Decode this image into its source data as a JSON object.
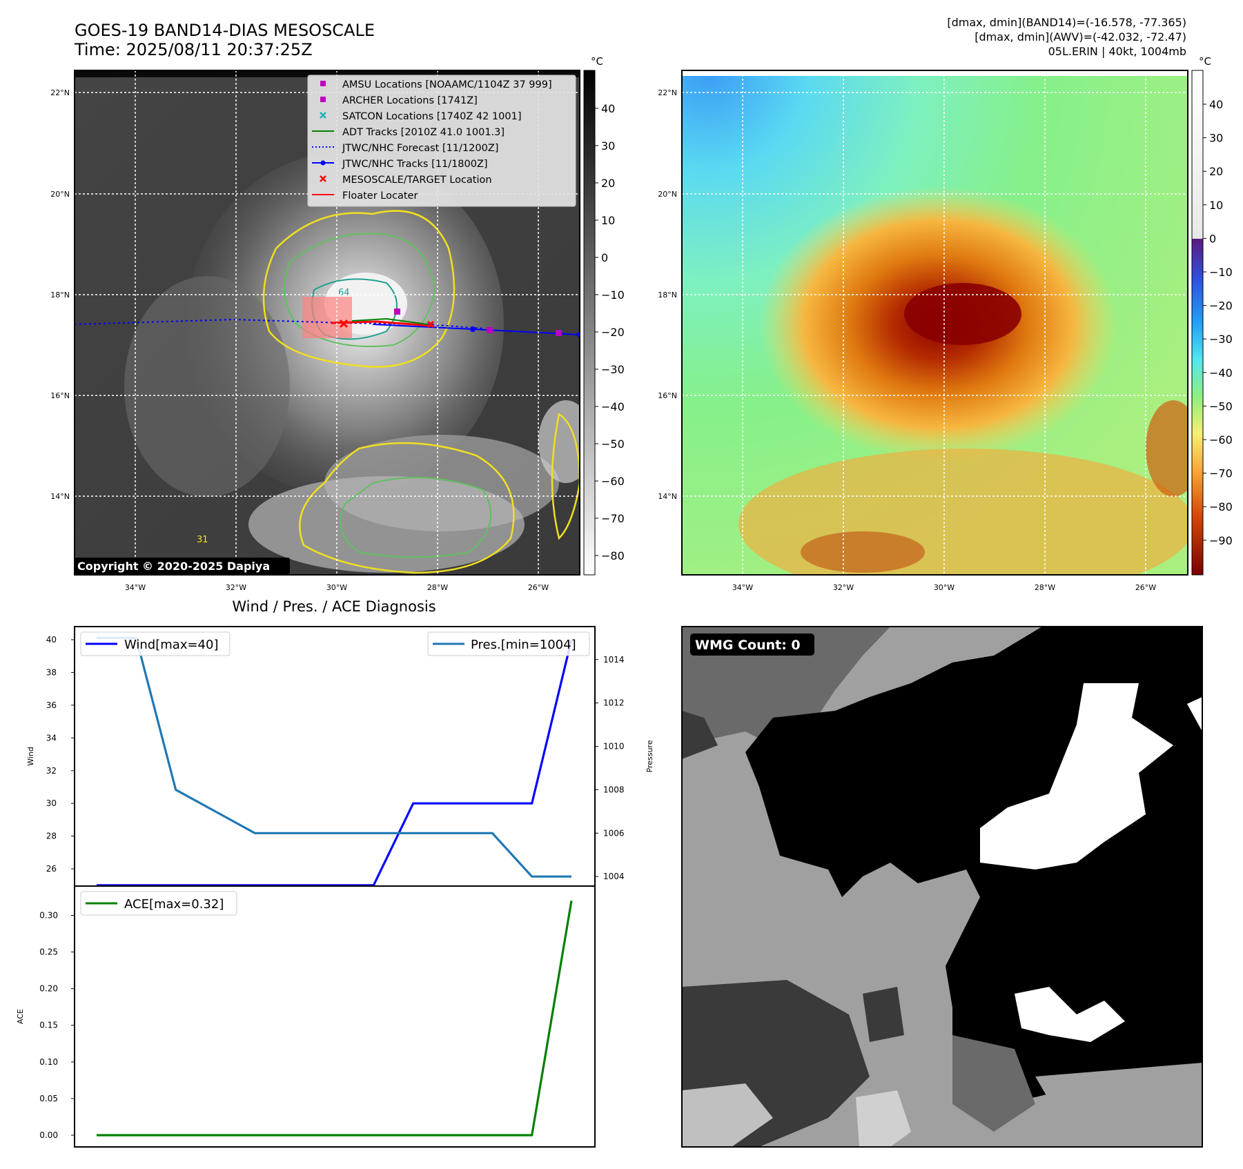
{
  "header": {
    "title_line1": "GOES-19 BAND14-DIAS MESOSCALE",
    "title_line2": "Time: 2025/08/11 20:37:25Z",
    "info_line1": "[dmax, dmin](BAND14)=(-16.578, -77.365)",
    "info_line2": "[dmax, dmin](AWV)=(-42.032, -72.47)",
    "info_line3": "05L.ERIN | 40kt, 1004mb"
  },
  "map": {
    "lat_labels": [
      "22°N",
      "20°N",
      "18°N",
      "16°N",
      "14°N"
    ],
    "lon_labels": [
      "34°W",
      "32°W",
      "30°W",
      "28°W",
      "26°W"
    ],
    "copyright": "Copyright © 2020-2025 Dapiya",
    "contour_label_64": "64",
    "contour_label_31": "31",
    "legend": [
      {
        "label": "AMSU Locations [NOAAMC/1104Z 37 999]",
        "marker": "square",
        "color": "#c000c0"
      },
      {
        "label": "ARCHER Locations [1741Z]",
        "marker": "square",
        "color": "#c000c0"
      },
      {
        "label": "SATCON Locations [1740Z 42 1001]",
        "marker": "x",
        "color": "#20b0b0"
      },
      {
        "label": "ADT Tracks [2010Z 41.0 1001.3]",
        "marker": "line",
        "color": "#008000"
      },
      {
        "label": "JTWC/NHC Forecast [11/1200Z]",
        "marker": "dotted",
        "color": "#0000ff"
      },
      {
        "label": "JTWC/NHC Tracks [11/1800Z]",
        "marker": "line-dot",
        "color": "#0000ff"
      },
      {
        "label": "MESOSCALE/TARGET Location",
        "marker": "x",
        "color": "#ff0000"
      },
      {
        "label": "Floater Locater",
        "marker": "line",
        "color": "#ff0000"
      }
    ]
  },
  "colorbar_ir": {
    "unit": "°C",
    "ticks": [
      "40",
      "30",
      "20",
      "10",
      "0",
      "−10",
      "−20",
      "−30",
      "−40",
      "−50",
      "−60",
      "−70",
      "−80"
    ]
  },
  "colorbar_wv": {
    "unit": "°C",
    "ticks": [
      "40",
      "30",
      "20",
      "10",
      "0",
      "−10",
      "−20",
      "−30",
      "−40",
      "−50",
      "−60",
      "−70",
      "−80",
      "−90"
    ]
  },
  "chart_data": [
    {
      "type": "line",
      "title": "Wind / Pres. / ACE Diagnosis",
      "ylabel": "Wind",
      "y2label": "Pressure",
      "ylim": [
        24.95,
        40.8
      ],
      "y2lim": [
        1003.56,
        1015.52
      ],
      "yticks": [
        "40",
        "38",
        "36",
        "34",
        "32",
        "30",
        "28",
        "26"
      ],
      "y2ticks": [
        "1014",
        "1012",
        "1010",
        "1008",
        "1006",
        "1004"
      ],
      "x": [
        0,
        1,
        2,
        3,
        4,
        5,
        6,
        7,
        8,
        9,
        10,
        11,
        12
      ],
      "series": [
        {
          "name": "Wind[max=40]",
          "axis": "left",
          "color": "#0000ff",
          "values": [
            25,
            25,
            25,
            25,
            25,
            25,
            25,
            25,
            30,
            30,
            30,
            30,
            40
          ]
        },
        {
          "name": "Pres.[min=1004]",
          "axis": "right",
          "color": "#1f77b4",
          "values": [
            1015,
            1015,
            1008,
            1007,
            1006,
            1006,
            1006,
            1006,
            1006,
            1006,
            1006,
            1004,
            1004
          ]
        }
      ]
    },
    {
      "type": "line",
      "ylabel": "ACE",
      "ylim": [
        -0.016,
        0.34
      ],
      "yticks": [
        "0.30",
        "0.25",
        "0.20",
        "0.15",
        "0.10",
        "0.05",
        "0.00"
      ],
      "x": [
        0,
        1,
        2,
        3,
        4,
        5,
        6,
        7,
        8,
        9,
        10,
        11,
        12
      ],
      "series": [
        {
          "name": "ACE[max=0.32]",
          "color": "#008000",
          "values": [
            0,
            0,
            0,
            0,
            0,
            0,
            0,
            0,
            0,
            0,
            0,
            0,
            0.32
          ]
        }
      ]
    }
  ],
  "wmg": {
    "badge": "WMG Count: 0"
  }
}
